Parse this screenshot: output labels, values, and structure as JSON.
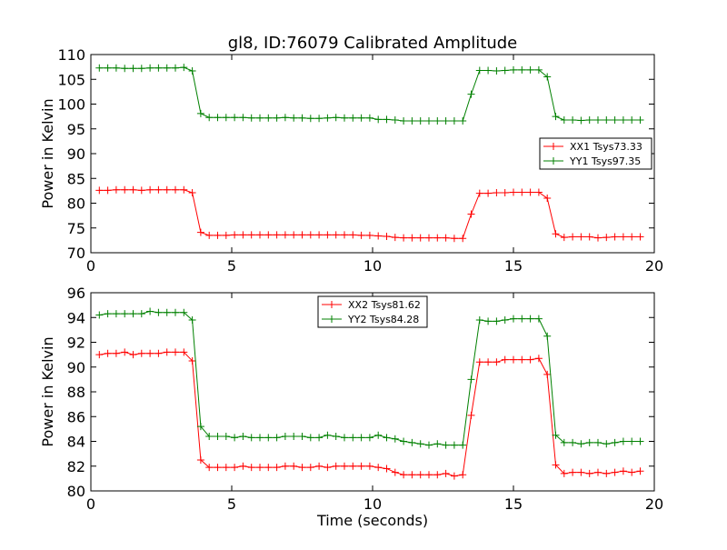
{
  "chart_data": [
    {
      "type": "line",
      "title": "gl8, ID:76079 Calibrated Amplitude",
      "xlabel": "",
      "ylabel": "Power in Kelvin",
      "xlim": [
        0,
        20
      ],
      "ylim": [
        70,
        110
      ],
      "xticks": [
        "0",
        "5",
        "10",
        "15",
        "20"
      ],
      "yticks": [
        "70",
        "75",
        "80",
        "85",
        "90",
        "95",
        "100",
        "105",
        "110"
      ],
      "grid": false,
      "legend_position": "center-right",
      "x": [
        0.3,
        0.6,
        0.9,
        1.2,
        1.5,
        1.8,
        2.1,
        2.4,
        2.7,
        3.0,
        3.3,
        3.6,
        3.9,
        4.2,
        4.5,
        4.8,
        5.1,
        5.4,
        5.7,
        6.0,
        6.3,
        6.6,
        6.9,
        7.2,
        7.5,
        7.8,
        8.1,
        8.4,
        8.7,
        9.0,
        9.3,
        9.6,
        9.9,
        10.2,
        10.5,
        10.8,
        11.1,
        11.4,
        11.7,
        12.0,
        12.3,
        12.6,
        12.9,
        13.2,
        13.5,
        13.8,
        14.1,
        14.4,
        14.7,
        15.0,
        15.3,
        15.6,
        15.9,
        16.2,
        16.5,
        16.8,
        17.1,
        17.4,
        17.7,
        18.0,
        18.3,
        18.6,
        18.9,
        19.2,
        19.5
      ],
      "series": [
        {
          "name": "XX1 Tsys73.33",
          "color": "#ff0000",
          "values": [
            82.6,
            82.6,
            82.7,
            82.7,
            82.7,
            82.6,
            82.7,
            82.7,
            82.7,
            82.7,
            82.7,
            82.1,
            74.1,
            73.5,
            73.5,
            73.5,
            73.6,
            73.6,
            73.6,
            73.6,
            73.6,
            73.6,
            73.6,
            73.6,
            73.6,
            73.6,
            73.6,
            73.6,
            73.6,
            73.6,
            73.6,
            73.5,
            73.5,
            73.4,
            73.3,
            73.1,
            73.0,
            73.0,
            73.0,
            73.0,
            73.0,
            73.0,
            72.9,
            72.9,
            77.8,
            82.0,
            82.0,
            82.1,
            82.1,
            82.2,
            82.2,
            82.2,
            82.2,
            81.0,
            73.8,
            73.1,
            73.2,
            73.2,
            73.2,
            73.0,
            73.1,
            73.2,
            73.2,
            73.2,
            73.2
          ]
        },
        {
          "name": "YY1 Tsys97.35",
          "color": "#008000",
          "values": [
            107.3,
            107.3,
            107.3,
            107.2,
            107.2,
            107.2,
            107.3,
            107.3,
            107.3,
            107.3,
            107.4,
            106.7,
            98.1,
            97.3,
            97.3,
            97.3,
            97.3,
            97.3,
            97.2,
            97.2,
            97.2,
            97.2,
            97.3,
            97.2,
            97.2,
            97.1,
            97.1,
            97.2,
            97.3,
            97.2,
            97.2,
            97.2,
            97.2,
            96.9,
            96.9,
            96.8,
            96.6,
            96.6,
            96.6,
            96.6,
            96.6,
            96.6,
            96.6,
            96.6,
            102.0,
            106.8,
            106.8,
            106.7,
            106.8,
            106.9,
            106.9,
            106.9,
            106.9,
            105.5,
            97.5,
            96.8,
            96.8,
            96.7,
            96.8,
            96.8,
            96.8,
            96.8,
            96.8,
            96.8,
            96.8
          ]
        }
      ]
    },
    {
      "type": "line",
      "title": "",
      "xlabel": "Time (seconds)",
      "ylabel": "Power in Kelvin",
      "xlim": [
        0,
        20
      ],
      "ylim": [
        80,
        96
      ],
      "xticks": [
        "0",
        "5",
        "10",
        "15",
        "20"
      ],
      "yticks": [
        "80",
        "82",
        "84",
        "86",
        "88",
        "90",
        "92",
        "94",
        "96"
      ],
      "grid": false,
      "legend_position": "top-center",
      "x": [
        0.3,
        0.6,
        0.9,
        1.2,
        1.5,
        1.8,
        2.1,
        2.4,
        2.7,
        3.0,
        3.3,
        3.6,
        3.9,
        4.2,
        4.5,
        4.8,
        5.1,
        5.4,
        5.7,
        6.0,
        6.3,
        6.6,
        6.9,
        7.2,
        7.5,
        7.8,
        8.1,
        8.4,
        8.7,
        9.0,
        9.3,
        9.6,
        9.9,
        10.2,
        10.5,
        10.8,
        11.1,
        11.4,
        11.7,
        12.0,
        12.3,
        12.6,
        12.9,
        13.2,
        13.5,
        13.8,
        14.1,
        14.4,
        14.7,
        15.0,
        15.3,
        15.6,
        15.9,
        16.2,
        16.5,
        16.8,
        17.1,
        17.4,
        17.7,
        18.0,
        18.3,
        18.6,
        18.9,
        19.2,
        19.5
      ],
      "series": [
        {
          "name": "XX2 Tsys81.62",
          "color": "#ff0000",
          "values": [
            91.0,
            91.1,
            91.1,
            91.2,
            91.0,
            91.1,
            91.1,
            91.1,
            91.2,
            91.2,
            91.2,
            90.5,
            82.5,
            81.9,
            81.9,
            81.9,
            81.9,
            82.0,
            81.9,
            81.9,
            81.9,
            81.9,
            82.0,
            82.0,
            81.9,
            81.9,
            82.0,
            81.9,
            82.0,
            82.0,
            82.0,
            82.0,
            82.0,
            81.9,
            81.8,
            81.5,
            81.3,
            81.3,
            81.3,
            81.3,
            81.3,
            81.4,
            81.2,
            81.3,
            86.1,
            90.4,
            90.4,
            90.4,
            90.6,
            90.6,
            90.6,
            90.6,
            90.7,
            89.4,
            82.1,
            81.4,
            81.5,
            81.5,
            81.4,
            81.5,
            81.4,
            81.5,
            81.6,
            81.5,
            81.6
          ]
        },
        {
          "name": "YY2 Tsys84.28",
          "color": "#008000",
          "values": [
            94.2,
            94.3,
            94.3,
            94.3,
            94.3,
            94.3,
            94.5,
            94.4,
            94.4,
            94.4,
            94.4,
            93.8,
            85.2,
            84.4,
            84.4,
            84.4,
            84.3,
            84.4,
            84.3,
            84.3,
            84.3,
            84.3,
            84.4,
            84.4,
            84.4,
            84.3,
            84.3,
            84.5,
            84.4,
            84.3,
            84.3,
            84.3,
            84.3,
            84.5,
            84.3,
            84.2,
            84.0,
            83.9,
            83.8,
            83.7,
            83.8,
            83.7,
            83.7,
            83.7,
            89.0,
            93.8,
            93.7,
            93.7,
            93.8,
            93.9,
            93.9,
            93.9,
            93.9,
            92.5,
            84.5,
            83.9,
            83.9,
            83.8,
            83.9,
            83.9,
            83.8,
            83.9,
            84.0,
            84.0,
            84.0
          ]
        }
      ]
    }
  ]
}
